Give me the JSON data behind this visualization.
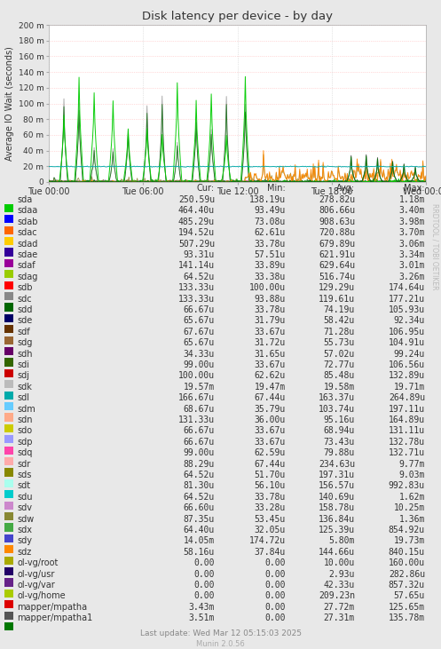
{
  "title": "Disk latency per device - by day",
  "ylabel": "Average IO Wait (seconds)",
  "right_label": "RRDTOOL / TOBI OETIKER",
  "bg_color": "#e8e8e8",
  "plot_bg_color": "#ffffff",
  "ylim": [
    0,
    0.2
  ],
  "yticks": [
    0,
    0.02,
    0.04,
    0.06,
    0.08,
    0.1,
    0.12,
    0.14,
    0.16,
    0.18,
    0.2
  ],
  "ytick_labels": [
    "0",
    "20 m",
    "40 m",
    "60 m",
    "80 m",
    "100 m",
    "120 m",
    "140 m",
    "160 m",
    "180 m",
    "200 m"
  ],
  "xtick_labels": [
    "Tue 00:00",
    "Tue 06:00",
    "Tue 12:00",
    "Tue 18:00",
    "Wed 00:00"
  ],
  "footer": "Last update: Wed Mar 12 05:15:03 2025",
  "munin_version": "Munin 2.0.56",
  "legend": [
    {
      "label": "sda",
      "color": "#00cc00"
    },
    {
      "label": "sdaa",
      "color": "#0000ff"
    },
    {
      "label": "sdab",
      "color": "#ff6600"
    },
    {
      "label": "sdac",
      "color": "#ffcc00"
    },
    {
      "label": "sdad",
      "color": "#330099"
    },
    {
      "label": "sdae",
      "color": "#990099"
    },
    {
      "label": "sdaf",
      "color": "#99cc00"
    },
    {
      "label": "sdag",
      "color": "#ff0000"
    },
    {
      "label": "sdb",
      "color": "#888888"
    },
    {
      "label": "sdc",
      "color": "#006600"
    },
    {
      "label": "sdd",
      "color": "#000066"
    },
    {
      "label": "sde",
      "color": "#663300"
    },
    {
      "label": "sdf",
      "color": "#996633"
    },
    {
      "label": "sdg",
      "color": "#660066"
    },
    {
      "label": "sdh",
      "color": "#336600"
    },
    {
      "label": "sdi",
      "color": "#cc0000"
    },
    {
      "label": "sdj",
      "color": "#bbbbbb"
    },
    {
      "label": "sdk",
      "color": "#00aaaa"
    },
    {
      "label": "sdl",
      "color": "#66ccff"
    },
    {
      "label": "sdm",
      "color": "#ffaa88"
    },
    {
      "label": "sdn",
      "color": "#cccc00"
    },
    {
      "label": "sdo",
      "color": "#9999ff"
    },
    {
      "label": "sdp",
      "color": "#ff44aa"
    },
    {
      "label": "sdq",
      "color": "#ffaaaa"
    },
    {
      "label": "sdr",
      "color": "#888800"
    },
    {
      "label": "sds",
      "color": "#aaffee"
    },
    {
      "label": "sdt",
      "color": "#00cccc"
    },
    {
      "label": "sdu",
      "color": "#cc88cc"
    },
    {
      "label": "sdv",
      "color": "#888833"
    },
    {
      "label": "sdw",
      "color": "#44aa44"
    },
    {
      "label": "sdx",
      "color": "#4444cc"
    },
    {
      "label": "sdy",
      "color": "#ff8800"
    },
    {
      "label": "sdz",
      "color": "#aaaa00"
    },
    {
      "label": "ol-vg/root",
      "color": "#220066"
    },
    {
      "label": "ol-vg/usr",
      "color": "#662288"
    },
    {
      "label": "ol-vg/var",
      "color": "#aacc00"
    },
    {
      "label": "ol-vg/home",
      "color": "#dd0000"
    },
    {
      "label": "mapper/mpatha",
      "color": "#555555"
    },
    {
      "label": "mapper/mpatha1",
      "color": "#007700"
    }
  ],
  "stats": [
    {
      "label": "sda",
      "cur": "250.59u",
      "min": "138.19u",
      "avg": "278.82u",
      "max": "1.18m"
    },
    {
      "label": "sdaa",
      "cur": "464.40u",
      "min": "93.49u",
      "avg": "806.66u",
      "max": "3.40m"
    },
    {
      "label": "sdab",
      "cur": "485.29u",
      "min": "73.08u",
      "avg": "908.63u",
      "max": "3.98m"
    },
    {
      "label": "sdac",
      "cur": "194.52u",
      "min": "62.61u",
      "avg": "720.88u",
      "max": "3.70m"
    },
    {
      "label": "sdad",
      "cur": "507.29u",
      "min": "33.78u",
      "avg": "679.89u",
      "max": "3.06m"
    },
    {
      "label": "sdae",
      "cur": "93.31u",
      "min": "57.51u",
      "avg": "621.91u",
      "max": "3.34m"
    },
    {
      "label": "sdaf",
      "cur": "141.14u",
      "min": "33.89u",
      "avg": "629.64u",
      "max": "3.01m"
    },
    {
      "label": "sdag",
      "cur": "64.52u",
      "min": "33.38u",
      "avg": "516.74u",
      "max": "3.26m"
    },
    {
      "label": "sdb",
      "cur": "133.33u",
      "min": "100.00u",
      "avg": "129.29u",
      "max": "174.64u"
    },
    {
      "label": "sdc",
      "cur": "133.33u",
      "min": "93.88u",
      "avg": "119.61u",
      "max": "177.21u"
    },
    {
      "label": "sdd",
      "cur": "66.67u",
      "min": "33.78u",
      "avg": "74.19u",
      "max": "105.93u"
    },
    {
      "label": "sde",
      "cur": "65.67u",
      "min": "31.79u",
      "avg": "58.42u",
      "max": "92.34u"
    },
    {
      "label": "sdf",
      "cur": "67.67u",
      "min": "33.67u",
      "avg": "71.28u",
      "max": "106.95u"
    },
    {
      "label": "sdg",
      "cur": "65.67u",
      "min": "31.72u",
      "avg": "55.73u",
      "max": "104.91u"
    },
    {
      "label": "sdh",
      "cur": "34.33u",
      "min": "31.65u",
      "avg": "57.02u",
      "max": "99.24u"
    },
    {
      "label": "sdi",
      "cur": "99.00u",
      "min": "33.67u",
      "avg": "72.77u",
      "max": "106.56u"
    },
    {
      "label": "sdj",
      "cur": "100.00u",
      "min": "62.62u",
      "avg": "85.48u",
      "max": "132.89u"
    },
    {
      "label": "sdk",
      "cur": "19.57m",
      "min": "19.47m",
      "avg": "19.58m",
      "max": "19.71m"
    },
    {
      "label": "sdl",
      "cur": "166.67u",
      "min": "67.44u",
      "avg": "163.37u",
      "max": "264.89u"
    },
    {
      "label": "sdm",
      "cur": "68.67u",
      "min": "35.79u",
      "avg": "103.74u",
      "max": "197.11u"
    },
    {
      "label": "sdn",
      "cur": "131.33u",
      "min": "36.00u",
      "avg": "95.16u",
      "max": "164.89u"
    },
    {
      "label": "sdo",
      "cur": "66.67u",
      "min": "33.67u",
      "avg": "68.94u",
      "max": "131.11u"
    },
    {
      "label": "sdp",
      "cur": "66.67u",
      "min": "33.67u",
      "avg": "73.43u",
      "max": "132.78u"
    },
    {
      "label": "sdq",
      "cur": "99.00u",
      "min": "62.59u",
      "avg": "79.88u",
      "max": "132.71u"
    },
    {
      "label": "sdr",
      "cur": "88.29u",
      "min": "67.44u",
      "avg": "234.63u",
      "max": "9.77m"
    },
    {
      "label": "sds",
      "cur": "64.52u",
      "min": "51.70u",
      "avg": "197.31u",
      "max": "9.03m"
    },
    {
      "label": "sdt",
      "cur": "81.30u",
      "min": "56.10u",
      "avg": "156.57u",
      "max": "992.83u"
    },
    {
      "label": "sdu",
      "cur": "64.52u",
      "min": "33.78u",
      "avg": "140.69u",
      "max": "1.62m"
    },
    {
      "label": "sdv",
      "cur": "66.60u",
      "min": "33.28u",
      "avg": "158.78u",
      "max": "10.25m"
    },
    {
      "label": "sdw",
      "cur": "87.35u",
      "min": "53.45u",
      "avg": "136.84u",
      "max": "1.36m"
    },
    {
      "label": "sdx",
      "cur": "64.40u",
      "min": "32.05u",
      "avg": "125.39u",
      "max": "854.92u"
    },
    {
      "label": "sdy",
      "cur": "14.05m",
      "min": "174.72u",
      "avg": "5.80m",
      "max": "19.73m"
    },
    {
      "label": "sdz",
      "cur": "58.16u",
      "min": "37.84u",
      "avg": "144.66u",
      "max": "840.15u"
    },
    {
      "label": "ol-vg/root",
      "cur": "0.00",
      "min": "0.00",
      "avg": "10.00u",
      "max": "160.00u"
    },
    {
      "label": "ol-vg/usr",
      "cur": "0.00",
      "min": "0.00",
      "avg": "2.93u",
      "max": "282.86u"
    },
    {
      "label": "ol-vg/var",
      "cur": "0.00",
      "min": "0.00",
      "avg": "42.33u",
      "max": "857.32u"
    },
    {
      "label": "ol-vg/home",
      "cur": "0.00",
      "min": "0.00",
      "avg": "209.23n",
      "max": "57.65u"
    },
    {
      "label": "mapper/mpatha",
      "cur": "3.43m",
      "min": "0.00",
      "avg": "27.72m",
      "max": "125.65m"
    },
    {
      "label": "mapper/mpatha1",
      "cur": "3.51m",
      "min": "0.00",
      "avg": "27.31m",
      "max": "135.78m"
    }
  ]
}
